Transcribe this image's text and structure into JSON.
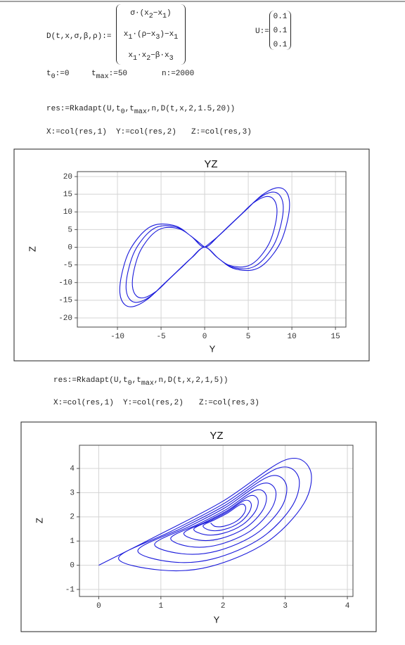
{
  "worksheet": {
    "D_def": {
      "lhs": [
        "D(t,x,σ,β,ρ):="
      ],
      "matrix": [
        [
          "σ·(x",
          {
            "sub": "2"
          },
          "−x",
          {
            "sub": "1"
          },
          ")"
        ],
        [
          "x",
          {
            "sub": "1"
          },
          "·(ρ−x",
          {
            "sub": "3"
          },
          ")−x",
          {
            "sub": "1"
          }
        ],
        [
          "x",
          {
            "sub": "1"
          },
          "·x",
          {
            "sub": "2"
          },
          "−β·x",
          {
            "sub": "3"
          }
        ]
      ]
    },
    "U_def": {
      "lhs": [
        "U:="
      ],
      "vector": [
        0.1,
        0.1,
        0.1
      ]
    },
    "params": [
      [
        "t",
        {
          "sub": "0"
        },
        ":=0"
      ],
      [
        "t",
        {
          "sub": "max"
        },
        ":=50"
      ],
      [
        "n:=2000"
      ]
    ],
    "calc1": {
      "res": [
        "res:=Rkadapt(U,t",
        {
          "sub": "0"
        },
        ",t",
        {
          "sub": "max"
        },
        ",n,D(t,x,2,1.5,20))"
      ],
      "cols": [
        "X:=col(res,1)",
        "Y:=col(res,2)",
        "Z:=col(res,3)"
      ]
    },
    "calc2": {
      "res": [
        "res:=Rkadapt(U,t",
        {
          "sub": "0"
        },
        ",t",
        {
          "sub": "max"
        },
        ",n,D(t,x,2,1,5))"
      ],
      "cols": [
        "X:=col(res,1)",
        "Y:=col(res,2)",
        "Z:=col(res,3)"
      ]
    }
  },
  "chart_data": [
    {
      "type": "line",
      "title": "YZ",
      "x_label": "Y",
      "y_label": "Z",
      "grid": true,
      "xlim": [
        -14.6,
        16.2
      ],
      "ylim": [
        -22.6,
        21.4
      ],
      "xticks": [
        -10,
        -5,
        0,
        5,
        10,
        15
      ],
      "yticks": [
        -20,
        -15,
        -10,
        -5,
        0,
        5,
        10,
        15,
        20
      ],
      "x": [
        0,
        1.38,
        2.76,
        4.14,
        5.52,
        6.9,
        7.82,
        8.28,
        8.1,
        7.36,
        5.98,
        4.6,
        2.76,
        1.38,
        0,
        -1.38,
        -2.76,
        -4.14,
        -5.52,
        -6.9,
        -7.82,
        -8.28,
        -8.1,
        -7.36,
        -5.98,
        -4.6,
        -2.76,
        -1.38,
        0,
        1.5,
        3,
        4.5,
        6,
        7.5,
        8.5,
        9,
        8.8,
        8,
        6.5,
        5,
        3,
        1.5,
        0,
        -1.5,
        -3,
        -4.5,
        -6,
        -7.5,
        -8.5,
        -9,
        -8.8,
        -8,
        -6.5,
        -5,
        -3,
        -1.5,
        0,
        1.62,
        3.24,
        4.86,
        6.48,
        8.1,
        9.18,
        9.72,
        9.5,
        8.64,
        7.02,
        5.4,
        3.24,
        1.62,
        0,
        -1.62,
        -3.24,
        -4.86,
        -6.48,
        -8.1,
        -9.18,
        -9.72,
        -9.5,
        -8.64,
        -7.02,
        -5.4,
        -3.24,
        -1.62,
        0
      ],
      "series": [
        {
          "color": "#1a1adb",
          "values": [
            0,
            2.76,
            5.98,
            9.2,
            12.42,
            14.26,
            13.8,
            11.04,
            6.44,
            0.92,
            -3.68,
            -5.52,
            -5.06,
            -2.76,
            0,
            -2.76,
            -5.98,
            -9.2,
            -12.42,
            -14.26,
            -13.8,
            -11.04,
            -6.44,
            -0.92,
            3.68,
            5.52,
            5.06,
            2.76,
            0,
            3,
            6.5,
            10,
            13.5,
            15.5,
            15,
            12,
            7,
            1,
            -4,
            -6,
            -5.5,
            -3,
            0,
            -3,
            -6.5,
            -10,
            -13.5,
            -15.5,
            -15,
            -12,
            -7,
            -1,
            4,
            6,
            5.5,
            3,
            0,
            3.24,
            7.02,
            10.8,
            14.58,
            16.74,
            16.2,
            12.96,
            7.56,
            1.08,
            -4.32,
            -6.48,
            -5.94,
            -3.24,
            0,
            -3.24,
            -7.02,
            -10.8,
            -14.58,
            -16.74,
            -16.2,
            -12.96,
            -7.56,
            -1.08,
            4.32,
            6.48,
            5.94,
            3.24,
            0
          ]
        }
      ]
    },
    {
      "type": "line",
      "title": "YZ",
      "x_label": "Y",
      "y_label": "Z",
      "grid": true,
      "xlim": [
        -0.31,
        4.09
      ],
      "ylim": [
        -1.29,
        4.96
      ],
      "xticks": [
        0,
        1,
        2,
        3,
        4
      ],
      "yticks": [
        -1,
        0,
        1,
        2,
        3,
        4
      ],
      "x": [
        0,
        1.0,
        2.0,
        3.0,
        3.4,
        3.3,
        2.7,
        1.8,
        1.0,
        0.32,
        1.17,
        2.02,
        2.87,
        3.21,
        3.12,
        2.61,
        1.85,
        1.17,
        0.63,
        1.33,
        2.03,
        2.73,
        3.01,
        2.94,
        2.52,
        1.89,
        1.33,
        0.9,
        1.47,
        2.04,
        2.61,
        2.84,
        2.78,
        2.44,
        1.93,
        1.47,
        1.16,
        1.61,
        2.06,
        2.51,
        2.69,
        2.64,
        2.37,
        1.97,
        1.61,
        1.37,
        1.72,
        2.07,
        2.42,
        2.56,
        2.52,
        2.31,
        2.0,
        1.72,
        1.53,
        1.8,
        2.07,
        2.34,
        2.45,
        2.42,
        2.26,
        2.02,
        1.8,
        1.68,
        1.88,
        2.08,
        2.28,
        2.36,
        2.34,
        2.22,
        2.04,
        1.88,
        1.8
      ],
      "series": [
        {
          "color": "#1a1adb",
          "values": [
            0,
            1.3,
            2.65,
            4.35,
            3.95,
            2.55,
            0.95,
            -0.05,
            -0.2,
            0.31,
            1.41,
            2.56,
            4.0,
            3.67,
            2.48,
            1.12,
            0.27,
            0.14,
            0.62,
            1.53,
            2.47,
            3.66,
            3.38,
            2.4,
            1.28,
            0.58,
            0.48,
            0.88,
            1.62,
            2.39,
            3.36,
            3.13,
            2.34,
            1.42,
            0.85,
            0.77,
            1.13,
            1.71,
            2.32,
            3.09,
            2.91,
            2.28,
            1.56,
            1.11,
            1.04,
            1.33,
            1.79,
            2.26,
            2.86,
            2.72,
            2.23,
            1.67,
            1.32,
            1.26,
            1.5,
            1.85,
            2.21,
            2.67,
            2.56,
            2.19,
            1.75,
            1.48,
            1.44,
            1.64,
            1.9,
            2.17,
            2.51,
            2.43,
            2.15,
            1.83,
            1.63,
            1.6,
            1.75
          ]
        }
      ]
    }
  ]
}
